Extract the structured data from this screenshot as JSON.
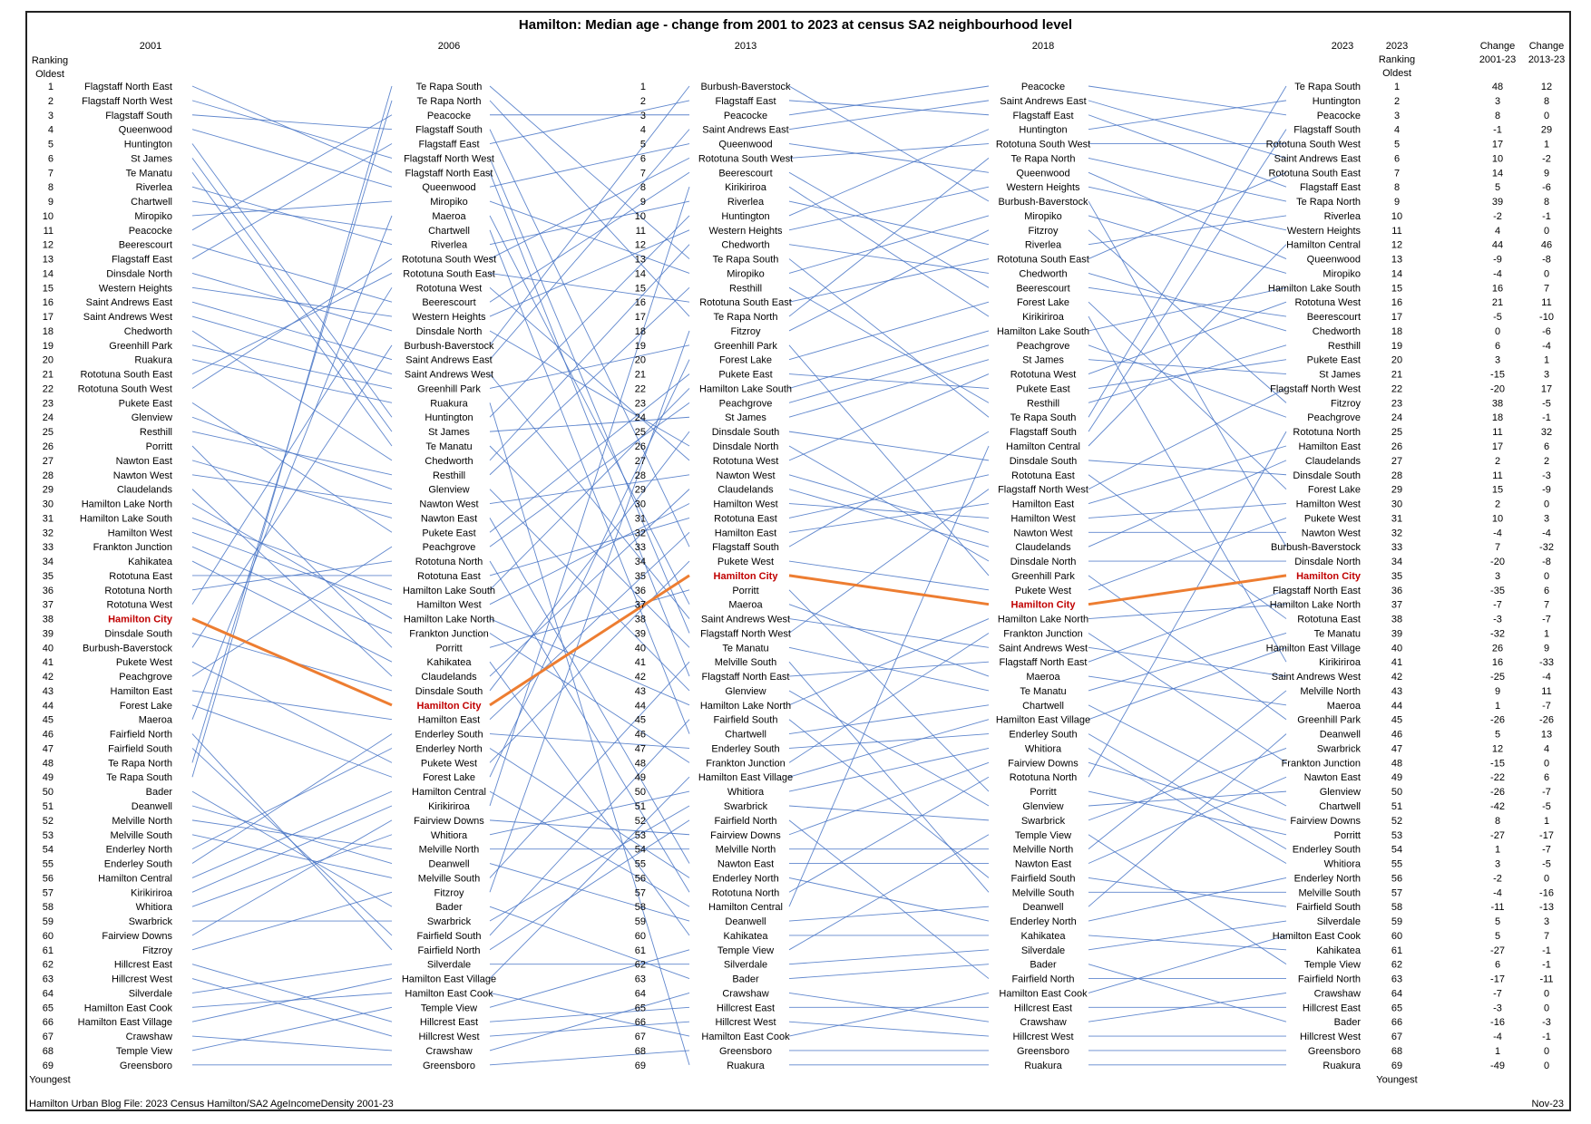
{
  "chart_data": {
    "type": "line",
    "title": "Hamilton: Median age - change from 2001 to 2023 at census SA2 neighbourhood level",
    "highlight": "Hamilton City",
    "colors": {
      "line": "#4472c4",
      "highlight": "#ed7d31",
      "highlight_text": "#c00000"
    },
    "headers": {
      "ranking_left": [
        "Ranking",
        "Oldest"
      ],
      "ranking_right": [
        "2023",
        "Ranking",
        "Oldest"
      ],
      "change_2001": [
        "Change",
        "2001-23"
      ],
      "change_2013": [
        "Change",
        "2013-23"
      ],
      "youngest": "Youngest"
    },
    "years": [
      "2001",
      "2006",
      "2013",
      "2018",
      "2023"
    ],
    "rankings": [
      [
        "Flagstaff North East",
        "Flagstaff North West",
        "Flagstaff South",
        "Queenwood",
        "Huntington",
        "St James",
        "Te Manatu",
        "Riverlea",
        "Chartwell",
        "Miropiko",
        "Peacocke",
        "Beerescourt",
        "Flagstaff East",
        "Dinsdale North",
        "Western Heights",
        "Saint Andrews East",
        "Saint Andrews West",
        "Chedworth",
        "Greenhill Park",
        "Ruakura",
        "Rototuna South East",
        "Rototuna South West",
        "Pukete East",
        "Glenview",
        "Resthill",
        "Porritt",
        "Nawton East",
        "Nawton West",
        "Claudelands",
        "Hamilton Lake North",
        "Hamilton Lake South",
        "Hamilton West",
        "Frankton Junction",
        "Kahikatea",
        "Rototuna East",
        "Rototuna North",
        "Rototuna West",
        "Hamilton City",
        "Dinsdale South",
        "Burbush-Baverstock",
        "Pukete West",
        "Peachgrove",
        "Hamilton East",
        "Forest Lake",
        "Maeroa",
        "Fairfield North",
        "Fairfield South",
        "Te Rapa North",
        "Te Rapa South",
        "Bader",
        "Deanwell",
        "Melville North",
        "Melville South",
        "Enderley North",
        "Enderley South",
        "Hamilton Central",
        "Kirikiriroa",
        "Whitiora",
        "Swarbrick",
        "Fairview Downs",
        "Fitzroy",
        "Hillcrest East",
        "Hillcrest West",
        "Silverdale",
        "Hamilton East Cook",
        "Hamilton East Village",
        "Crawshaw",
        "Temple View",
        "Greensboro"
      ],
      [
        "Te Rapa South",
        "Te Rapa North",
        "Peacocke",
        "Flagstaff South",
        "Flagstaff East",
        "Flagstaff North West",
        "Flagstaff North East",
        "Queenwood",
        "Miropiko",
        "Maeroa",
        "Chartwell",
        "Riverlea",
        "Rototuna South West",
        "Rototuna South East",
        "Rototuna West",
        "Beerescourt",
        "Western Heights",
        "Dinsdale North",
        "Burbush-Baverstock",
        "Saint Andrews East",
        "Saint Andrews West",
        "Greenhill Park",
        "Ruakura",
        "Huntington",
        "St James",
        "Te Manatu",
        "Chedworth",
        "Resthill",
        "Glenview",
        "Nawton West",
        "Nawton East",
        "Pukete East",
        "Peachgrove",
        "Rototuna North",
        "Rototuna East",
        "Hamilton Lake South",
        "Hamilton West",
        "Hamilton Lake North",
        "Frankton Junction",
        "Porritt",
        "Kahikatea",
        "Claudelands",
        "Dinsdale South",
        "Hamilton City",
        "Hamilton East",
        "Enderley South",
        "Enderley North",
        "Pukete West",
        "Forest Lake",
        "Hamilton Central",
        "Kirikiriroa",
        "Fairview Downs",
        "Whitiora",
        "Melville North",
        "Deanwell",
        "Melville South",
        "Fitzroy",
        "Bader",
        "Swarbrick",
        "Fairfield South",
        "Fairfield North",
        "Silverdale",
        "Hamilton East Village",
        "Hamilton East Cook",
        "Temple View",
        "Hillcrest East",
        "Hillcrest West",
        "Crawshaw",
        "Greensboro"
      ],
      [
        "Burbush-Baverstock",
        "Flagstaff East",
        "Peacocke",
        "Saint Andrews East",
        "Queenwood",
        "Rototuna South West",
        "Beerescourt",
        "Kirikiriroa",
        "Riverlea",
        "Huntington",
        "Western Heights",
        "Chedworth",
        "Te Rapa South",
        "Miropiko",
        "Resthill",
        "Rototuna South East",
        "Te Rapa North",
        "Fitzroy",
        "Greenhill Park",
        "Forest Lake",
        "Pukete East",
        "Hamilton Lake South",
        "Peachgrove",
        "St James",
        "Dinsdale South",
        "Dinsdale North",
        "Rototuna West",
        "Nawton West",
        "Claudelands",
        "Hamilton West",
        "Rototuna East",
        "Hamilton East",
        "Flagstaff South",
        "Pukete West",
        "Hamilton City",
        "Porritt",
        "Maeroa",
        "Saint Andrews West",
        "Flagstaff North West",
        "Te Manatu",
        "Melville South",
        "Flagstaff North East",
        "Glenview",
        "Hamilton Lake North",
        "Fairfield South",
        "Chartwell",
        "Enderley South",
        "Frankton Junction",
        "Hamilton East Village",
        "Whitiora",
        "Swarbrick",
        "Fairfield North",
        "Fairview Downs",
        "Melville North",
        "Nawton East",
        "Enderley North",
        "Rototuna North",
        "Hamilton Central",
        "Deanwell",
        "Kahikatea",
        "Temple View",
        "Silverdale",
        "Bader",
        "Crawshaw",
        "Hillcrest East",
        "Hillcrest West",
        "Hamilton East Cook",
        "Greensboro",
        "Ruakura"
      ],
      [
        "Peacocke",
        "Saint Andrews East",
        "Flagstaff East",
        "Huntington",
        "Rototuna South West",
        "Te Rapa North",
        "Queenwood",
        "Western Heights",
        "Burbush-Baverstock",
        "Miropiko",
        "Fitzroy",
        "Riverlea",
        "Rototuna South East",
        "Chedworth",
        "Beerescourt",
        "Forest Lake",
        "Kirikiriroa",
        "Hamilton Lake South",
        "Peachgrove",
        "St James",
        "Rototuna West",
        "Pukete East",
        "Resthill",
        "Te Rapa South",
        "Flagstaff South",
        "Hamilton Central",
        "Dinsdale South",
        "Rototuna East",
        "Flagstaff North West",
        "Hamilton East",
        "Hamilton West",
        "Nawton West",
        "Claudelands",
        "Dinsdale North",
        "Greenhill Park",
        "Pukete West",
        "Hamilton City",
        "Hamilton Lake North",
        "Frankton Junction",
        "Saint Andrews West",
        "Flagstaff North East",
        "Maeroa",
        "Te Manatu",
        "Chartwell",
        "Hamilton East Village",
        "Enderley South",
        "Whitiora",
        "Fairview Downs",
        "Rototuna North",
        "Porritt",
        "Glenview",
        "Swarbrick",
        "Temple View",
        "Melville North",
        "Nawton East",
        "Fairfield South",
        "Melville South",
        "Deanwell",
        "Enderley North",
        "Kahikatea",
        "Silverdale",
        "Bader",
        "Fairfield North",
        "Hamilton East Cook",
        "Hillcrest East",
        "Crawshaw",
        "Hillcrest West",
        "Greensboro",
        "Ruakura"
      ],
      [
        "Te Rapa South",
        "Huntington",
        "Peacocke",
        "Flagstaff South",
        "Rototuna South West",
        "Saint Andrews East",
        "Rototuna South East",
        "Flagstaff East",
        "Te Rapa North",
        "Riverlea",
        "Western Heights",
        "Hamilton Central",
        "Queenwood",
        "Miropiko",
        "Hamilton Lake South",
        "Rototuna West",
        "Beerescourt",
        "Chedworth",
        "Resthill",
        "Pukete East",
        "St James",
        "Flagstaff North West",
        "Fitzroy",
        "Peachgrove",
        "Rototuna North",
        "Hamilton East",
        "Claudelands",
        "Dinsdale South",
        "Forest Lake",
        "Hamilton West",
        "Pukete West",
        "Nawton West",
        "Burbush-Baverstock",
        "Dinsdale North",
        "Hamilton City",
        "Flagstaff North East",
        "Hamilton Lake North",
        "Rototuna East",
        "Te Manatu",
        "Hamilton East Village",
        "Kirikiriroa",
        "Saint Andrews West",
        "Melville North",
        "Maeroa",
        "Greenhill Park",
        "Deanwell",
        "Swarbrick",
        "Frankton Junction",
        "Nawton East",
        "Glenview",
        "Chartwell",
        "Fairview Downs",
        "Porritt",
        "Enderley South",
        "Whitiora",
        "Enderley North",
        "Melville South",
        "Fairfield South",
        "Silverdale",
        "Hamilton East Cook",
        "Kahikatea",
        "Temple View",
        "Fairfield North",
        "Crawshaw",
        "Hillcrest East",
        "Bader",
        "Hillcrest West",
        "Greensboro",
        "Ruakura"
      ]
    ],
    "change_2001_23": [
      48,
      3,
      8,
      -1,
      17,
      10,
      14,
      5,
      39,
      -2,
      4,
      44,
      -9,
      -4,
      16,
      21,
      -5,
      0,
      6,
      3,
      -15,
      -20,
      38,
      18,
      11,
      17,
      2,
      11,
      15,
      2,
      10,
      -4,
      7,
      -20,
      3,
      -35,
      -7,
      -3,
      -32,
      26,
      16,
      -25,
      9,
      1,
      -26,
      5,
      12,
      -15,
      -22,
      -26,
      -42,
      8,
      -27,
      1,
      3,
      -2,
      -4,
      -11,
      5,
      5,
      -27,
      6,
      -17,
      -7,
      -3,
      -16,
      -4,
      1,
      -49
    ],
    "change_2013_23": [
      12,
      8,
      0,
      29,
      1,
      -2,
      9,
      -6,
      8,
      -1,
      0,
      46,
      -8,
      0,
      7,
      11,
      -10,
      -6,
      -4,
      1,
      3,
      17,
      -5,
      -1,
      32,
      6,
      2,
      -3,
      -9,
      0,
      3,
      -4,
      -32,
      -8,
      0,
      6,
      7,
      -7,
      1,
      9,
      -33,
      -4,
      11,
      -7,
      -26,
      13,
      4,
      0,
      6,
      -7,
      -5,
      1,
      -17,
      -7,
      -5,
      0,
      -16,
      -13,
      3,
      7,
      -1,
      -1,
      -11,
      0,
      0,
      -3,
      -1,
      0,
      0
    ]
  },
  "footer": {
    "left": "Hamilton Urban Blog File: 2023 Census Hamilton/SA2 AgeIncomeDensity 2001-23",
    "right": "Nov-23"
  }
}
